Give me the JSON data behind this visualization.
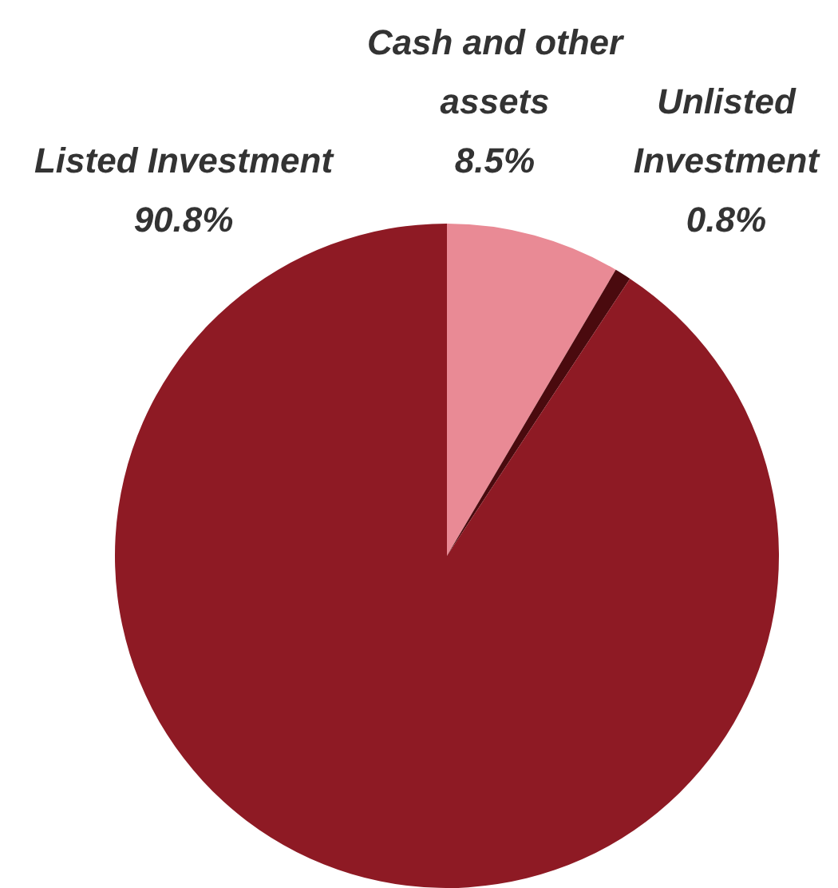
{
  "chart_data": {
    "type": "pie",
    "categories": [
      "Cash and other assets",
      "Unlisted Investment",
      "Listed Investment"
    ],
    "values": [
      8.5,
      0.8,
      90.8
    ],
    "colors": [
      "#e98a95",
      "#4a0a0e",
      "#8e1a24"
    ],
    "value_labels": [
      "8.5%",
      "0.8%",
      "90.8%"
    ],
    "legend": false
  }
}
